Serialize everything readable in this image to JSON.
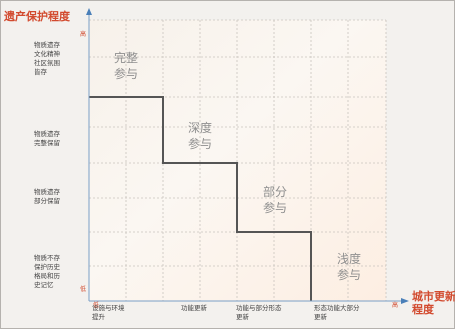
{
  "diagram": {
    "y_axis": {
      "title": "遗产保护程度",
      "high": "高",
      "low": "低",
      "levels": [
        "物质遗存\n文化精神\n社区氛围\n皆存",
        "物质遗存\n完整保留",
        "物质遗存\n部分保留",
        "物质不存\n保护历史\n格局和历\n史记忆"
      ]
    },
    "x_axis": {
      "title": "城市更新\n程度",
      "low": "低",
      "high": "高",
      "levels": [
        "设施与环境\n提升",
        "功能更新",
        "功能与部分形态\n更新",
        "形态功能大部分\n更新"
      ]
    },
    "zones": [
      {
        "label": "完整\n参与"
      },
      {
        "label": "深度\n参与"
      },
      {
        "label": "部分\n参与"
      },
      {
        "label": "浅度\n参与"
      }
    ],
    "colors": {
      "axis_accent": "#d24a2e",
      "step_line": "#555555",
      "grid": "#c9c4bd",
      "frame": "#b5b2ae"
    }
  }
}
